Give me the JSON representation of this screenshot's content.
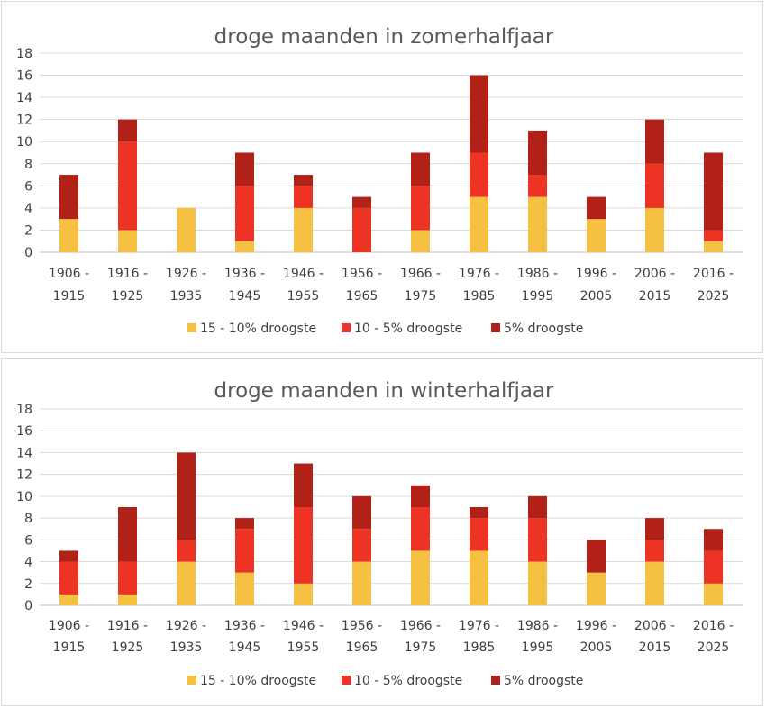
{
  "colors": {
    "series": [
      "#f6c143",
      "#ed3323",
      "#b12117"
    ],
    "grid": "#d9d9d9",
    "axis": "#bfbfbf"
  },
  "chart_data": [
    {
      "type": "bar",
      "stacked": true,
      "title": "droge maanden in zomerhalfjaar",
      "categories": [
        [
          "1906 -",
          "1915"
        ],
        [
          "1916 -",
          "1925"
        ],
        [
          "1926 -",
          "1935"
        ],
        [
          "1936 -",
          "1945"
        ],
        [
          "1946 -",
          "1955"
        ],
        [
          "1956 -",
          "1965"
        ],
        [
          "1966 -",
          "1975"
        ],
        [
          "1976 -",
          "1985"
        ],
        [
          "1986 -",
          "1995"
        ],
        [
          "1996 -",
          "2005"
        ],
        [
          "2006 -",
          "2015"
        ],
        [
          "2016 -",
          "2025"
        ]
      ],
      "series": [
        {
          "name": "15 - 10% droogste",
          "values": [
            3,
            2,
            4,
            1,
            4,
            0,
            2,
            5,
            5,
            3,
            4,
            1
          ]
        },
        {
          "name": "10 - 5% droogste",
          "values": [
            0,
            8,
            0,
            5,
            2,
            4,
            4,
            4,
            2,
            0,
            4,
            1
          ]
        },
        {
          "name": "5% droogste",
          "values": [
            4,
            2,
            0,
            3,
            1,
            1,
            3,
            7,
            4,
            2,
            4,
            7
          ]
        }
      ],
      "ylim": [
        0,
        18
      ],
      "yticks": [
        0,
        2,
        4,
        6,
        8,
        10,
        12,
        14,
        16,
        18
      ],
      "grid": true,
      "legend": "bottom"
    },
    {
      "type": "bar",
      "stacked": true,
      "title": "droge maanden in winterhalfjaar",
      "categories": [
        [
          "1906 -",
          "1915"
        ],
        [
          "1916 -",
          "1925"
        ],
        [
          "1926 -",
          "1935"
        ],
        [
          "1936 -",
          "1945"
        ],
        [
          "1946 -",
          "1955"
        ],
        [
          "1956 -",
          "1965"
        ],
        [
          "1966 -",
          "1975"
        ],
        [
          "1976 -",
          "1985"
        ],
        [
          "1986 -",
          "1995"
        ],
        [
          "1996 -",
          "2005"
        ],
        [
          "2006 -",
          "2015"
        ],
        [
          "2016 -",
          "2025"
        ]
      ],
      "series": [
        {
          "name": "15 - 10% droogste",
          "values": [
            1,
            1,
            4,
            3,
            2,
            4,
            5,
            5,
            4,
            3,
            4,
            2
          ]
        },
        {
          "name": "10 - 5% droogste",
          "values": [
            3,
            3,
            2,
            4,
            7,
            3,
            4,
            3,
            4,
            0,
            2,
            3
          ]
        },
        {
          "name": "5% droogste",
          "values": [
            1,
            5,
            8,
            1,
            4,
            3,
            2,
            1,
            2,
            3,
            2,
            2
          ]
        }
      ],
      "ylim": [
        0,
        18
      ],
      "yticks": [
        0,
        2,
        4,
        6,
        8,
        10,
        12,
        14,
        16,
        18
      ],
      "grid": true,
      "legend": "bottom"
    }
  ]
}
